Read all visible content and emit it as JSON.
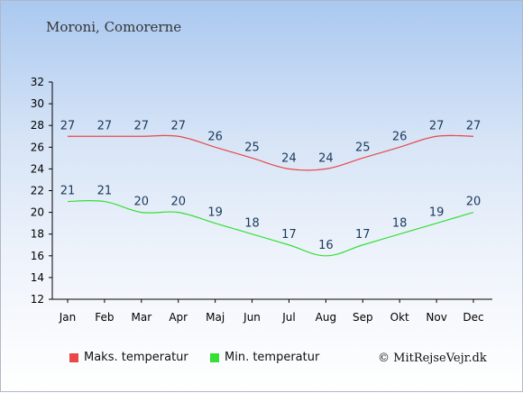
{
  "title": "Moroni, Comorerne",
  "credit": "© MitRejseVejr.dk",
  "chart_data": {
    "type": "line",
    "categories": [
      "Jan",
      "Feb",
      "Mar",
      "Apr",
      "Maj",
      "Jun",
      "Jul",
      "Aug",
      "Sep",
      "Okt",
      "Nov",
      "Dec"
    ],
    "ylim": [
      12,
      32
    ],
    "yticks": [
      12,
      14,
      16,
      18,
      20,
      22,
      24,
      26,
      28,
      30,
      32
    ],
    "grid": false,
    "legend_position": "bottom",
    "series": [
      {
        "name": "Maks. temperatur",
        "color": "#e84848",
        "values": [
          27,
          27,
          27,
          27,
          26,
          25,
          24,
          24,
          25,
          26,
          27,
          27
        ]
      },
      {
        "name": "Min. temperatur",
        "color": "#33e033",
        "values": [
          21,
          21,
          20,
          20,
          19,
          18,
          17,
          16,
          17,
          18,
          19,
          20
        ]
      }
    ]
  }
}
